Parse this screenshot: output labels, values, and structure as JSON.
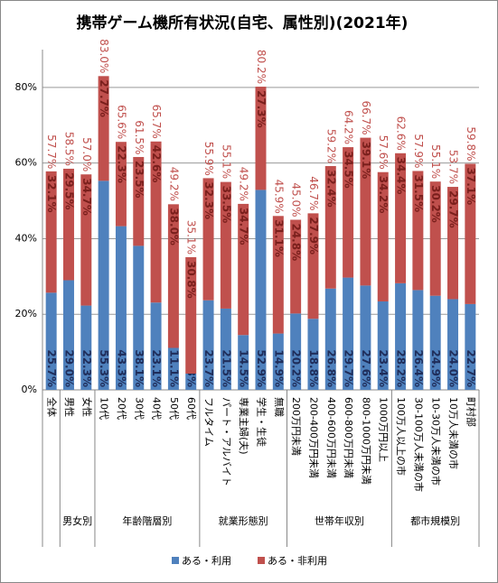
{
  "chart_data": {
    "type": "stacked_bar",
    "title": "携帯ゲーム機所有状況(自宅、属性別)(2021年)",
    "groups": [
      {
        "label": null,
        "categories": [
          "全体"
        ]
      },
      {
        "label": "男女別",
        "categories": [
          "男性",
          "女性"
        ]
      },
      {
        "label": "年齢階層別",
        "categories": [
          "10代",
          "20代",
          "30代",
          "40代",
          "50代",
          "60代"
        ]
      },
      {
        "label": "就業形態別",
        "categories": [
          "フルタイム",
          "パート・アルバイト",
          "専業主婦(夫)",
          "学生・生徒",
          "無職"
        ]
      },
      {
        "label": "世帯年収別",
        "categories": [
          "200万円未満",
          "200-400万円未満",
          "400-600万円未満",
          "600-800万円未満",
          "800-1000万円未満",
          "1000万円以上"
        ]
      },
      {
        "label": "都市規模別",
        "categories": [
          "100万人以上の市",
          "30-100万人未満の市",
          "10-30万人未満の市",
          "10万人未満の市",
          "町村部"
        ]
      }
    ],
    "series": [
      {
        "name": "ある・利用",
        "color": "#4f81bd",
        "values": [
          25.7,
          29.0,
          22.3,
          55.3,
          43.3,
          38.1,
          23.1,
          11.1,
          4.3,
          23.7,
          21.5,
          14.5,
          52.9,
          14.9,
          20.2,
          18.8,
          26.8,
          29.7,
          27.6,
          23.4,
          28.2,
          26.4,
          24.9,
          24.0,
          22.7
        ],
        "value_labels": [
          "25.7%",
          "29.0%",
          "22.3%",
          "55.3%",
          "43.3%",
          "38.1%",
          "23.1%",
          "11.1%",
          "4.3%",
          "23.7%",
          "21.5%",
          "14.5%",
          "52.9%",
          "14.9%",
          "20.2%",
          "18.8%",
          "26.8%",
          "29.7%",
          "27.6%",
          "23.4%",
          "28.2%",
          "26.4%",
          "24.9%",
          "24.0%",
          "22.7%"
        ]
      },
      {
        "name": "ある・非利用",
        "color": "#c0504d",
        "values": [
          32.1,
          29.5,
          34.7,
          27.7,
          22.3,
          23.5,
          42.6,
          38.0,
          30.8,
          32.3,
          33.5,
          34.7,
          27.3,
          31.1,
          24.8,
          27.9,
          32.4,
          34.5,
          39.1,
          34.2,
          34.4,
          31.5,
          30.2,
          29.7,
          37.1
        ],
        "value_labels": [
          "32.1%",
          "29.5%",
          "34.7%",
          "27.7%",
          "22.3%",
          "23.5%",
          "42.6%",
          "38.0%",
          "30.8%",
          "32.3%",
          "33.5%",
          "34.7%",
          "27.3%",
          "31.1%",
          "24.8%",
          "27.9%",
          "32.4%",
          "34.5%",
          "39.1%",
          "34.2%",
          "34.4%",
          "31.5%",
          "30.2%",
          "29.7%",
          "37.1%"
        ]
      }
    ],
    "totals": [
      57.7,
      58.5,
      57.0,
      83.0,
      65.6,
      61.5,
      65.7,
      49.2,
      35.1,
      55.9,
      55.1,
      49.2,
      80.2,
      45.9,
      45.0,
      46.7,
      59.2,
      64.2,
      66.7,
      57.6,
      62.6,
      57.9,
      55.1,
      53.7,
      59.8
    ],
    "total_labels": [
      "57.7%",
      "58.5%",
      "57.0%",
      "83.0%",
      "65.6%",
      "61.5%",
      "65.7%",
      "49.2%",
      "35.1%",
      "55.9%",
      "55.1%",
      "49.2%",
      "80.2%",
      "45.9%",
      "45.0%",
      "46.7%",
      "59.2%",
      "64.2%",
      "66.7%",
      "57.6%",
      "62.6%",
      "57.9%",
      "55.1%",
      "53.7%",
      "59.8%"
    ],
    "ylim": [
      0,
      90
    ],
    "yticks": [
      {
        "value": 0,
        "label": "0%"
      },
      {
        "value": 20,
        "label": "20%"
      },
      {
        "value": 40,
        "label": "40%"
      },
      {
        "value": 60,
        "label": "60%"
      },
      {
        "value": 80,
        "label": "80%"
      }
    ],
    "grid": true
  }
}
